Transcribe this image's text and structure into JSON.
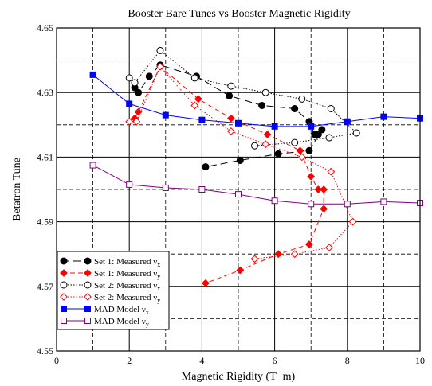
{
  "chart_data": {
    "type": "line",
    "title": "Booster Bare Tunes vs Booster Magnetic Rigidity",
    "xlabel": "Magnetic Rigidity (T−m)",
    "ylabel": "Betatron Tune",
    "xlim": [
      0,
      10
    ],
    "ylim": [
      4.55,
      4.65
    ],
    "xticks": [
      0,
      2,
      4,
      6,
      8,
      10
    ],
    "xtick_labels": [
      "0",
      "2",
      "4",
      "6",
      "8",
      "10"
    ],
    "yticks": [
      4.55,
      4.57,
      4.59,
      4.61,
      4.63,
      4.65
    ],
    "ytick_labels": [
      "4.55",
      "4.57",
      "4.59",
      "4.61",
      "4.63",
      "4.65"
    ],
    "grid": true,
    "legend_position": "bottom-left",
    "series": [
      {
        "name_main": "Set 1: Measured ν",
        "name_sub": "x",
        "color": "#000000",
        "line": "longdash",
        "marker": "circle-filled",
        "points": [
          [
            2.15,
            4.6315
          ],
          [
            2.25,
            4.63
          ],
          [
            2.55,
            4.635
          ],
          [
            2.85,
            4.6385
          ],
          [
            3.85,
            4.635
          ],
          [
            4.75,
            4.629
          ],
          [
            5.65,
            4.626
          ],
          [
            6.55,
            4.625
          ],
          [
            6.95,
            4.621
          ],
          [
            7.1,
            4.617
          ],
          [
            7.2,
            4.617
          ],
          [
            7.3,
            4.6185
          ],
          [
            6.95,
            4.612
          ],
          [
            6.1,
            4.611
          ],
          [
            5.05,
            4.609
          ],
          [
            4.1,
            4.607
          ]
        ]
      },
      {
        "name_main": "Set 1: Measured ν",
        "name_sub": "y",
        "color": "#ff0000",
        "line": "dash",
        "marker": "diamond-filled",
        "points": [
          [
            2.15,
            4.622
          ],
          [
            2.25,
            4.624
          ],
          [
            2.85,
            4.638
          ],
          [
            3.9,
            4.628
          ],
          [
            4.8,
            4.622
          ],
          [
            5.8,
            4.617
          ],
          [
            6.7,
            4.612
          ],
          [
            7.0,
            4.604
          ],
          [
            7.2,
            4.6
          ],
          [
            7.35,
            4.6
          ],
          [
            7.35,
            4.594
          ],
          [
            6.95,
            4.583
          ],
          [
            6.1,
            4.58
          ],
          [
            5.05,
            4.575
          ],
          [
            4.1,
            4.571
          ]
        ]
      },
      {
        "name_main": "Set 2: Measured ν",
        "name_sub": "x",
        "color": "#000000",
        "line": "dot",
        "marker": "circle-open",
        "points": [
          [
            2.0,
            4.6345
          ],
          [
            2.15,
            4.633
          ],
          [
            2.85,
            4.643
          ],
          [
            3.8,
            4.6345
          ],
          [
            4.8,
            4.632
          ],
          [
            5.75,
            4.63
          ],
          [
            6.75,
            4.628
          ],
          [
            7.55,
            4.625
          ],
          [
            8.25,
            4.6175
          ],
          [
            7.5,
            4.616
          ],
          [
            6.55,
            4.6145
          ],
          [
            5.45,
            4.6135
          ]
        ]
      },
      {
        "name_main": "Set 2: Measured ν",
        "name_sub": "y",
        "color": "#ff0000",
        "line": "dot",
        "marker": "diamond-open",
        "points": [
          [
            2.0,
            4.621
          ],
          [
            2.2,
            4.621
          ],
          [
            2.85,
            4.638
          ],
          [
            3.8,
            4.626
          ],
          [
            4.8,
            4.618
          ],
          [
            5.75,
            4.614
          ],
          [
            6.75,
            4.61
          ],
          [
            7.55,
            4.6055
          ],
          [
            8.15,
            4.59
          ],
          [
            7.5,
            4.582
          ],
          [
            6.55,
            4.58
          ],
          [
            5.45,
            4.5785
          ]
        ]
      },
      {
        "name_main": "MAD Model ν",
        "name_sub": "x",
        "color": "#0000ff",
        "line": "solid",
        "marker": "square-filled",
        "points": [
          [
            1.0,
            4.6355
          ],
          [
            2.0,
            4.6265
          ],
          [
            3.0,
            4.623
          ],
          [
            4.0,
            4.6215
          ],
          [
            5.0,
            4.6205
          ],
          [
            6.0,
            4.6195
          ],
          [
            7.0,
            4.6195
          ],
          [
            8.0,
            4.621
          ],
          [
            9.0,
            4.6225
          ],
          [
            10.0,
            4.622
          ]
        ]
      },
      {
        "name_main": "MAD Model ν",
        "name_sub": "y",
        "color": "#800080",
        "line": "solid",
        "marker": "square-open",
        "points": [
          [
            1.0,
            4.6075
          ],
          [
            2.0,
            4.6015
          ],
          [
            3.0,
            4.6005
          ],
          [
            4.0,
            4.6
          ],
          [
            5.0,
            4.5985
          ],
          [
            6.0,
            4.5965
          ],
          [
            7.0,
            4.5955
          ],
          [
            8.0,
            4.5955
          ],
          [
            9.0,
            4.5962
          ],
          [
            10.0,
            4.5958
          ]
        ]
      }
    ]
  }
}
